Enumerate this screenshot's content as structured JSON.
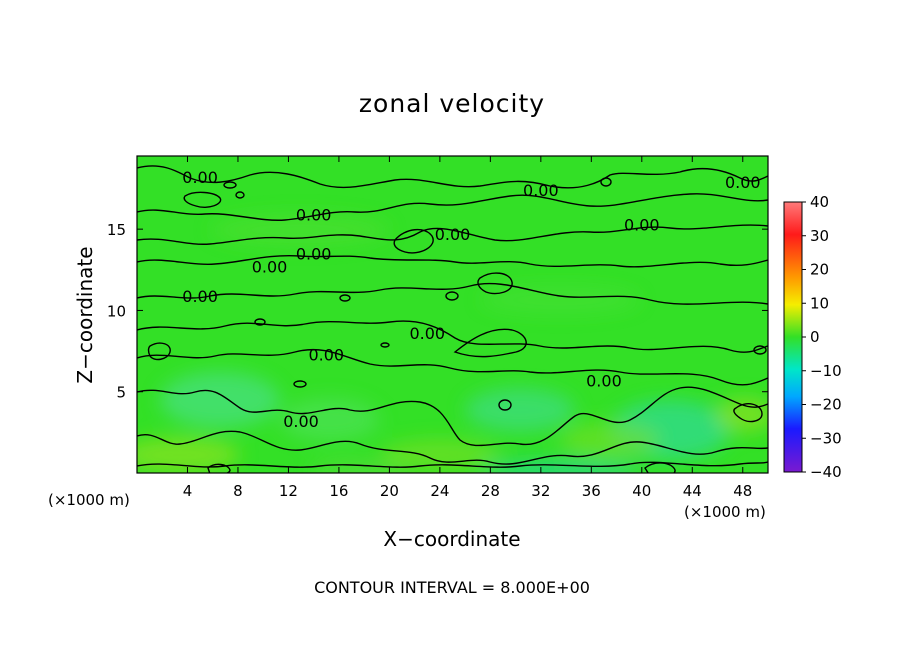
{
  "chart_data": {
    "type": "heatmap",
    "title": "zonal velocity",
    "xlabel": "X−coordinate",
    "ylabel": "Z−coordinate",
    "x_unit": "(×1000 m)",
    "y_unit": "(×1000 m)",
    "xlim": [
      0,
      50
    ],
    "ylim": [
      0,
      19.5
    ],
    "x_ticks": [
      4,
      8,
      12,
      16,
      20,
      24,
      28,
      32,
      36,
      40,
      44,
      48
    ],
    "y_ticks": [
      5,
      10,
      15
    ],
    "colorbar": {
      "range": [
        -40,
        40
      ],
      "ticks": [
        40,
        30,
        20,
        10,
        0,
        -10,
        -20,
        -30,
        -40
      ],
      "tick_labels": [
        "40",
        "30",
        "20",
        "10",
        "0",
        "−10",
        "−20",
        "−30",
        "−40"
      ]
    },
    "contour_interval_text": "CONTOUR INTERVAL = 8.000E+00",
    "contour_labels": [
      {
        "text": "0.00",
        "x": 5.0,
        "z": 18.2
      },
      {
        "text": "0.00",
        "x": 32.0,
        "z": 17.4
      },
      {
        "text": "0.00",
        "x": 48.0,
        "z": 17.9
      },
      {
        "text": "0.00",
        "x": 14.0,
        "z": 15.9
      },
      {
        "text": "0.00",
        "x": 25.0,
        "z": 14.7
      },
      {
        "text": "0.00",
        "x": 40.0,
        "z": 15.3
      },
      {
        "text": "0.00",
        "x": 10.5,
        "z": 12.7
      },
      {
        "text": "0.00",
        "x": 14.0,
        "z": 13.5
      },
      {
        "text": "0.00",
        "x": 5.0,
        "z": 10.9
      },
      {
        "text": "0.00",
        "x": 23.0,
        "z": 8.6
      },
      {
        "text": "0.00",
        "x": 15.0,
        "z": 7.3
      },
      {
        "text": "0.00",
        "x": 37.0,
        "z": 5.7
      },
      {
        "text": "0.00",
        "x": 13.0,
        "z": 3.2
      }
    ]
  },
  "colors": {
    "field_base": "#33e026",
    "contour": "#000000"
  }
}
